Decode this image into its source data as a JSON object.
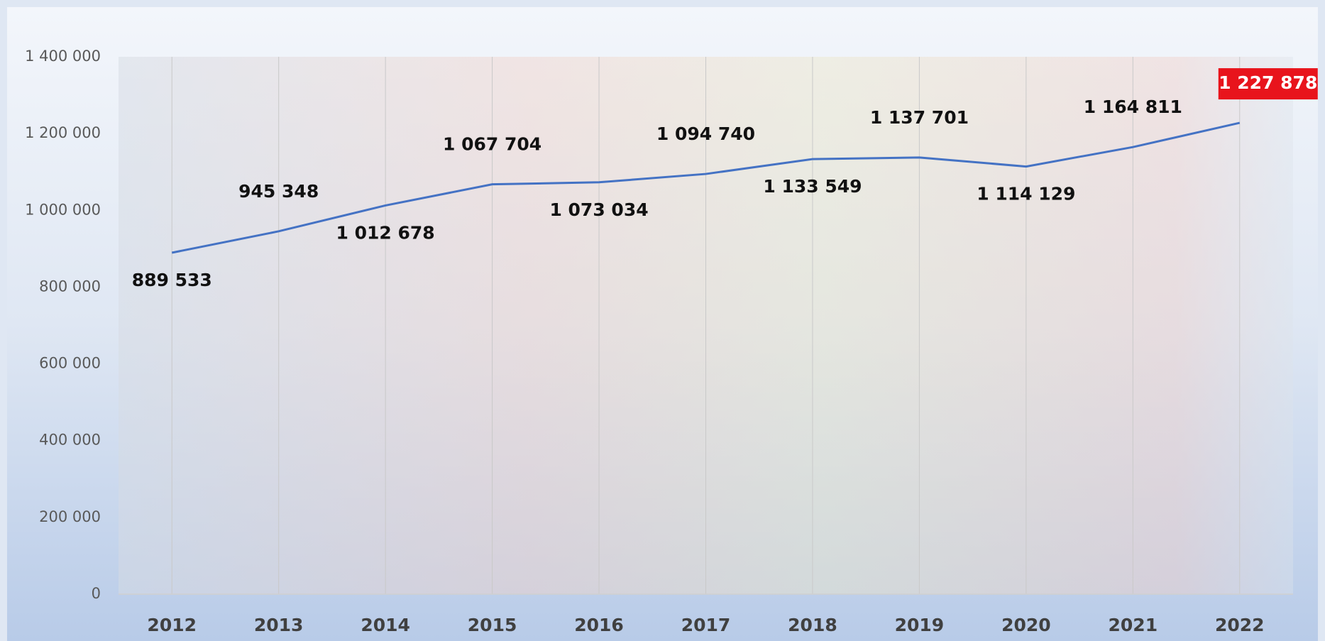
{
  "chart_data": {
    "type": "line",
    "categories": [
      "2012",
      "2013",
      "2014",
      "2015",
      "2016",
      "2017",
      "2018",
      "2019",
      "2020",
      "2021",
      "2022"
    ],
    "series": [
      {
        "color": "#4472c4",
        "values": [
          889533,
          945348,
          1012678,
          1067704,
          1073034,
          1094740,
          1133549,
          1137701,
          1114129,
          1164811,
          1227878
        ],
        "value_labels": [
          "889 533",
          "945 348",
          "1 012 678",
          "1 067 704",
          "1 073 034",
          "1 094 740",
          "1 133 549",
          "1 137 701",
          "1 114 129",
          "1 164 811",
          "1 227 878"
        ]
      }
    ],
    "ylim": [
      0,
      1400000
    ],
    "yticks": [
      {
        "value": 0,
        "label": "0"
      },
      {
        "value": 200000,
        "label": "200 000"
      },
      {
        "value": 400000,
        "label": "400 000"
      },
      {
        "value": 600000,
        "label": "600 000"
      },
      {
        "value": 800000,
        "label": "800 000"
      },
      {
        "value": 1000000,
        "label": "1 000 000"
      },
      {
        "value": 1200000,
        "label": "1 200 000"
      },
      {
        "value": 1400000,
        "label": "1 400 000"
      }
    ],
    "grid": true
  }
}
